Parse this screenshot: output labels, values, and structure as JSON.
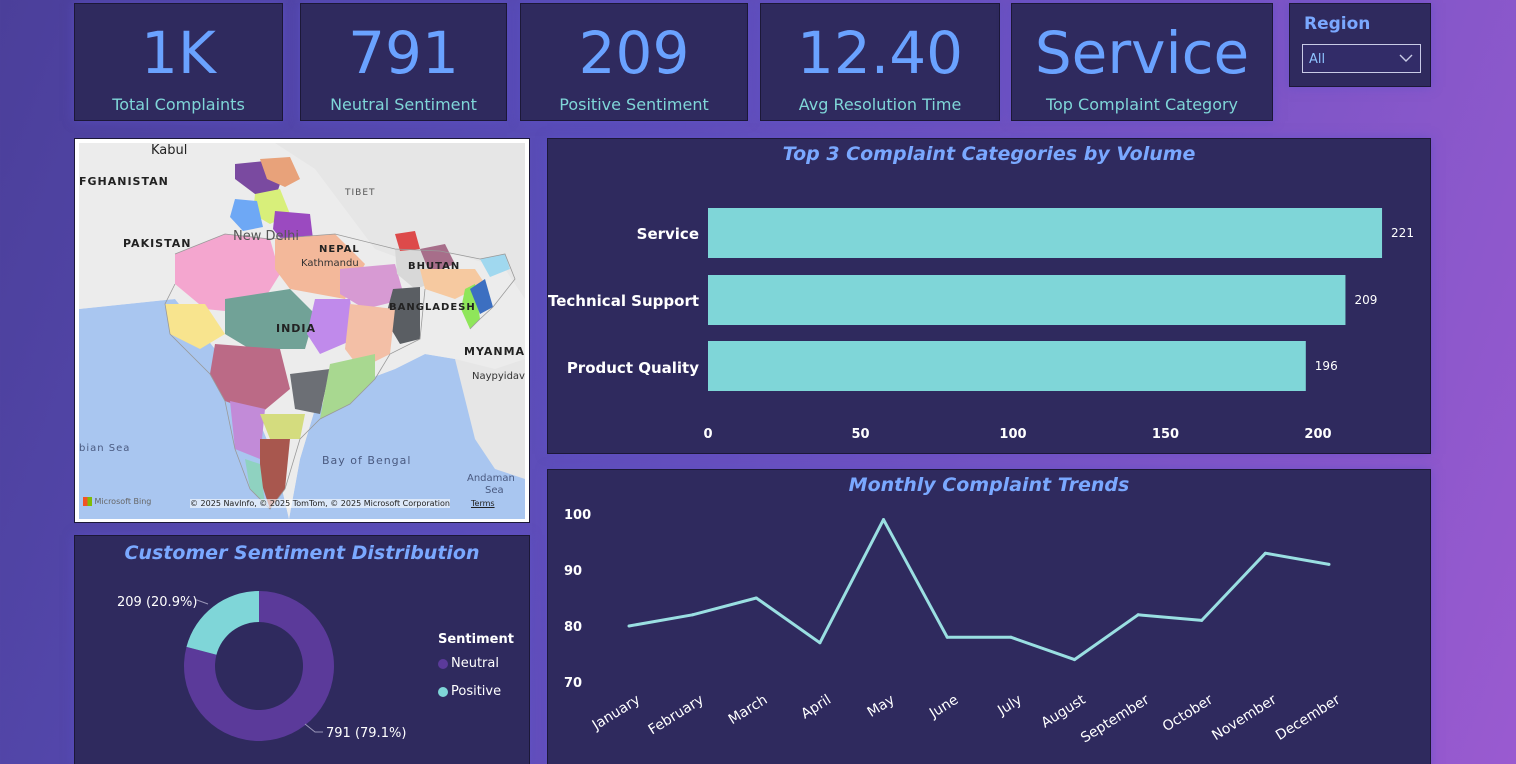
{
  "kpis": [
    {
      "value": "1K",
      "label": "Total Complaints"
    },
    {
      "value": "791",
      "label": "Neutral Sentiment"
    },
    {
      "value": "209",
      "label": "Positive Sentiment"
    },
    {
      "value": "12.40",
      "label": "Avg Resolution Time"
    },
    {
      "value": "Service",
      "label": "Top Complaint Category"
    }
  ],
  "region": {
    "title": "Region",
    "selected": "All"
  },
  "map": {
    "labels": {
      "kabul": "Kabul",
      "afghanistan": "FGHANISTAN",
      "pakistan": "PAKISTAN",
      "tibet": "TIBET",
      "new_delhi": "New Delhi",
      "nepal": "NEPAL",
      "kathmandu": "Kathmandu",
      "bhutan": "BHUTAN",
      "bangladesh": "BANGLADESH",
      "india": "INDIA",
      "myanmar": "MYANMA",
      "naypyidaw": "Naypyidav",
      "arabian_sea": "bian Sea",
      "bay_of_bengal": "Bay of Bengal",
      "andaman_sea_1": "Andaman",
      "andaman_sea_2": "Sea"
    },
    "brand": "Microsoft Bing",
    "copyright": "© 2025 NavInfo, © 2025 TomTom, © 2025 Microsoft Corporation",
    "terms": "Terms"
  },
  "bar_panel": {
    "title": "Top 3 Complaint Categories by Volume"
  },
  "line_panel": {
    "title": "Monthly Complaint Trends"
  },
  "donut_panel": {
    "title": "Customer Sentiment Distribution",
    "legend_title": "Sentiment",
    "legend": [
      {
        "name": "Neutral",
        "color": "#5b3a9a"
      },
      {
        "name": "Positive",
        "color": "#7fd6d8"
      }
    ]
  },
  "chart_data": [
    {
      "type": "bar",
      "orientation": "horizontal",
      "title": "Top 3 Complaint Categories by Volume",
      "categories": [
        "Service",
        "Technical Support",
        "Product Quality"
      ],
      "values": [
        221,
        209,
        196
      ],
      "data_labels": [
        "221",
        "209",
        "196"
      ],
      "xlim": [
        0,
        221
      ],
      "xticks": [
        0,
        50,
        100,
        150,
        200
      ],
      "color": "#7fd6d8"
    },
    {
      "type": "line",
      "title": "Monthly Complaint Trends",
      "x": [
        "January",
        "February",
        "March",
        "April",
        "May",
        "June",
        "July",
        "August",
        "September",
        "October",
        "November",
        "December"
      ],
      "values": [
        80,
        82,
        85,
        77,
        99,
        78,
        78,
        74,
        82,
        81,
        93,
        91
      ],
      "ylim": [
        70,
        100
      ],
      "yticks": [
        70,
        80,
        90,
        100
      ],
      "color": "#9adfe2"
    },
    {
      "type": "pie",
      "style": "donut",
      "title": "Customer Sentiment Distribution",
      "slices": [
        {
          "name": "Neutral",
          "value": 791,
          "label": "791 (79.1%)",
          "color": "#5b3a9a"
        },
        {
          "name": "Positive",
          "value": 209,
          "label": "209 (20.9%)",
          "color": "#7fd6d8"
        }
      ]
    }
  ]
}
